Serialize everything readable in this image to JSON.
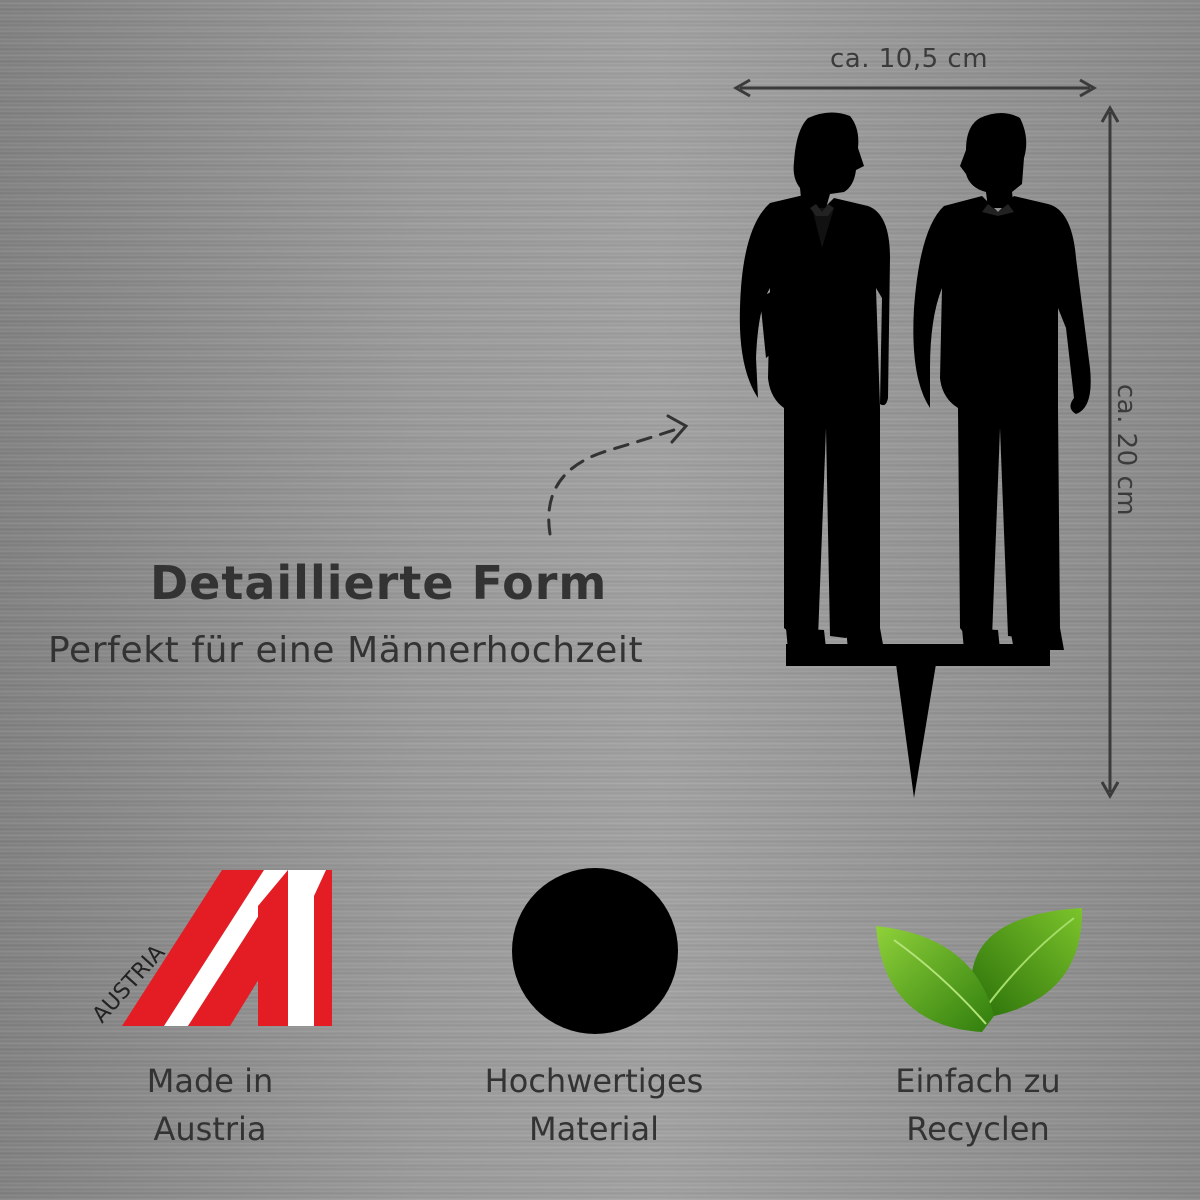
{
  "dimensions": {
    "width_label": "ca. 10,5 cm",
    "height_label": "ca. 20 cm"
  },
  "headline": "Detaillierte Form",
  "subline": "Perfekt für eine Männerhochzeit",
  "features": {
    "austria": {
      "line1": "Made in",
      "line2": "Austria",
      "logo_text": "AUSTRIA"
    },
    "material": {
      "line1": "Hochwertiges",
      "line2": "Material"
    },
    "recycle": {
      "line1": "Einfach zu",
      "line2": "Recyclen"
    }
  },
  "icons": [
    "austria-flag-icon",
    "black-circle-icon",
    "green-leaves-icon",
    "dashed-arrow-icon"
  ],
  "colors": {
    "text": "#333333",
    "flag_red": "#e41d24",
    "silhouette": "#000000",
    "leaf_green": "#4a9a14"
  }
}
